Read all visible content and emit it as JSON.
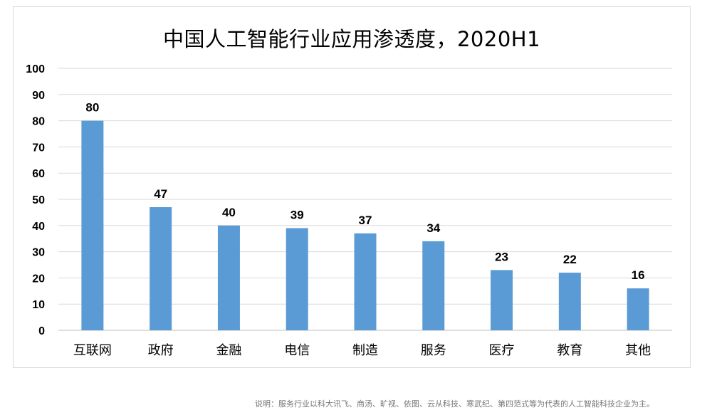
{
  "chart_data": {
    "type": "bar",
    "title": "中国人工智能行业应用渗透度，2020H1",
    "categories": [
      "互联网",
      "政府",
      "金融",
      "电信",
      "制造",
      "服务",
      "医疗",
      "教育",
      "其他"
    ],
    "values": [
      80,
      47,
      40,
      39,
      37,
      34,
      23,
      22,
      16
    ],
    "ylim": [
      0,
      100
    ],
    "yticks": [
      0,
      10,
      20,
      30,
      40,
      50,
      60,
      70,
      80,
      90,
      100
    ],
    "grid": true,
    "legend": "none",
    "bar_color": "#5b9bd5",
    "data_labels": true
  },
  "footnote": "说明：服务行业以科大讯飞、商汤、旷视、依图、云从科技、寒武纪、第四范式等为代表的人工智能科技企业为主。"
}
